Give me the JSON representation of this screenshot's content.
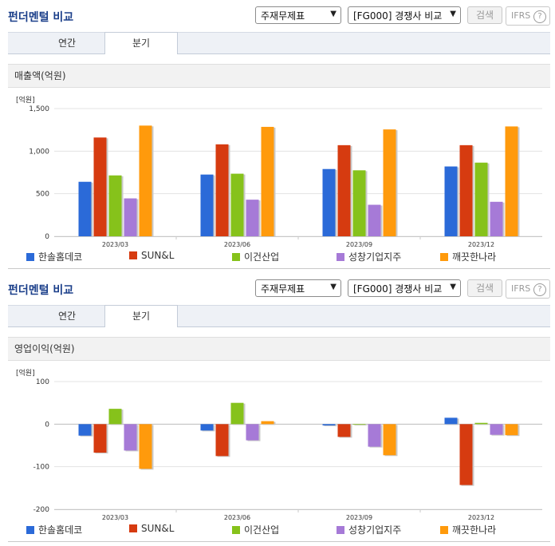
{
  "panels": [
    {
      "title": "펀더멘털 비교",
      "statement_select": "주재무제표",
      "peer_select": "[FG000] 경쟁사 비교",
      "search_label": "검색",
      "ifrs_label": "IFRS",
      "help_glyph": "?",
      "tabs": [
        "연간",
        "분기"
      ],
      "active_tab": "분기",
      "metric_label": "매출액(억원)",
      "unit_label": "[억원]"
    },
    {
      "title": "펀더멘털 비교",
      "statement_select": "주재무제표",
      "peer_select": "[FG000] 경쟁사 비교",
      "search_label": "검색",
      "ifrs_label": "IFRS",
      "help_glyph": "?",
      "tabs": [
        "연간",
        "분기"
      ],
      "active_tab": "분기",
      "metric_label": "영업이익(억원)",
      "unit_label": "[억원]"
    }
  ],
  "chart_data": [
    {
      "type": "bar",
      "title": "매출액(억원)",
      "ylabel": "[억원]",
      "categories": [
        "2023/03",
        "2023/06",
        "2023/09",
        "2023/12"
      ],
      "ylim": [
        0,
        1500
      ],
      "yticks": [
        0,
        500,
        1000,
        1500
      ],
      "ytick_labels": [
        "0",
        "500",
        "1,000",
        "1,500"
      ],
      "grid": true,
      "legend": "bottom",
      "series": [
        {
          "name": "한솔홈데코",
          "color": "#2b6ad8",
          "values": [
            640,
            725,
            790,
            820
          ]
        },
        {
          "name": "SUN&L",
          "color": "#d63b10",
          "values": [
            1160,
            1080,
            1070,
            1070
          ]
        },
        {
          "name": "이건산업",
          "color": "#86c21b",
          "values": [
            715,
            735,
            775,
            865
          ]
        },
        {
          "name": "성창기업지주",
          "color": "#a67ad7",
          "values": [
            445,
            430,
            370,
            405
          ]
        },
        {
          "name": "깨끗한나라",
          "color": "#ff9a0c",
          "values": [
            1300,
            1285,
            1255,
            1290
          ]
        }
      ]
    },
    {
      "type": "bar",
      "title": "영업이익(억원)",
      "ylabel": "[억원]",
      "categories": [
        "2023/03",
        "2023/06",
        "2023/09",
        "2023/12"
      ],
      "ylim": [
        -200,
        100
      ],
      "yticks": [
        -200,
        -100,
        0,
        100
      ],
      "ytick_labels": [
        "-200",
        "-100",
        "0",
        "100"
      ],
      "grid": true,
      "legend": "bottom",
      "series": [
        {
          "name": "한솔홈데코",
          "color": "#2b6ad8",
          "values": [
            -27,
            -15,
            -3,
            15
          ]
        },
        {
          "name": "SUN&L",
          "color": "#d63b10",
          "values": [
            -67,
            -75,
            -30,
            -143
          ]
        },
        {
          "name": "이건산업",
          "color": "#86c21b",
          "values": [
            36,
            50,
            0,
            3
          ]
        },
        {
          "name": "성창기업지주",
          "color": "#a67ad7",
          "values": [
            -62,
            -38,
            -53,
            -25
          ]
        },
        {
          "name": "깨끗한나라",
          "color": "#ff9a0c",
          "values": [
            -105,
            7,
            -73,
            -26
          ]
        }
      ]
    }
  ]
}
